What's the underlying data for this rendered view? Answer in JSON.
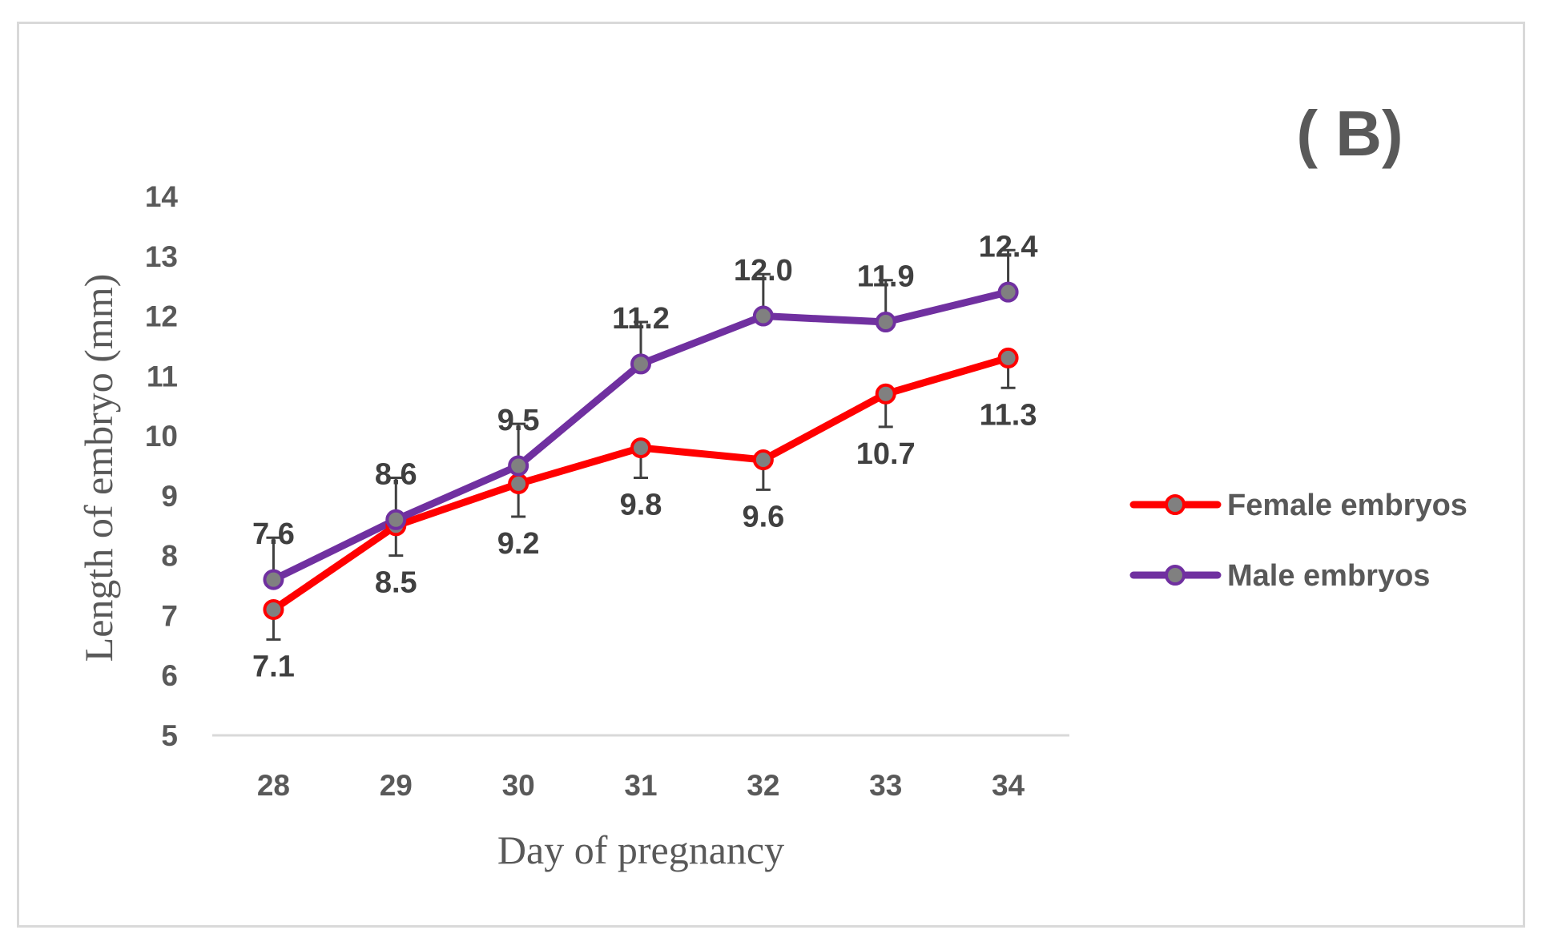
{
  "panel_label": "( B)",
  "chart_data": {
    "type": "line",
    "x": [
      28,
      29,
      30,
      31,
      32,
      33,
      34
    ],
    "xlabel": "Day of pregnancy",
    "ylabel": "Length of embryo (mm)",
    "ylim": [
      5,
      14
    ],
    "yticks": [
      5,
      6,
      7,
      8,
      9,
      10,
      11,
      12,
      13,
      14
    ],
    "grid": false,
    "legend_position": "right",
    "series": [
      {
        "name": "Female embryos",
        "color": "#ff0000",
        "values": [
          7.1,
          8.5,
          9.2,
          9.8,
          9.6,
          10.7,
          11.3
        ],
        "labels": [
          "7.1",
          "8.5",
          "9.2",
          "9.8",
          "9.6",
          "10.7",
          "11.3"
        ],
        "error": [
          0.5,
          0.5,
          0.55,
          0.5,
          0.5,
          0.55,
          0.5
        ],
        "error_direction": "down",
        "label_position": "below"
      },
      {
        "name": "Male embryos",
        "color": "#7030a0",
        "values": [
          7.6,
          8.6,
          9.5,
          11.2,
          12.0,
          11.9,
          12.4
        ],
        "labels": [
          "7.6",
          "8.6",
          "9.5",
          "11.2",
          "12.0",
          "11.9",
          "12.4"
        ],
        "error": [
          0.7,
          0.7,
          0.7,
          0.7,
          0.7,
          0.7,
          0.7
        ],
        "error_direction": "up",
        "label_position": "above"
      }
    ],
    "marker_color": "#808080"
  }
}
